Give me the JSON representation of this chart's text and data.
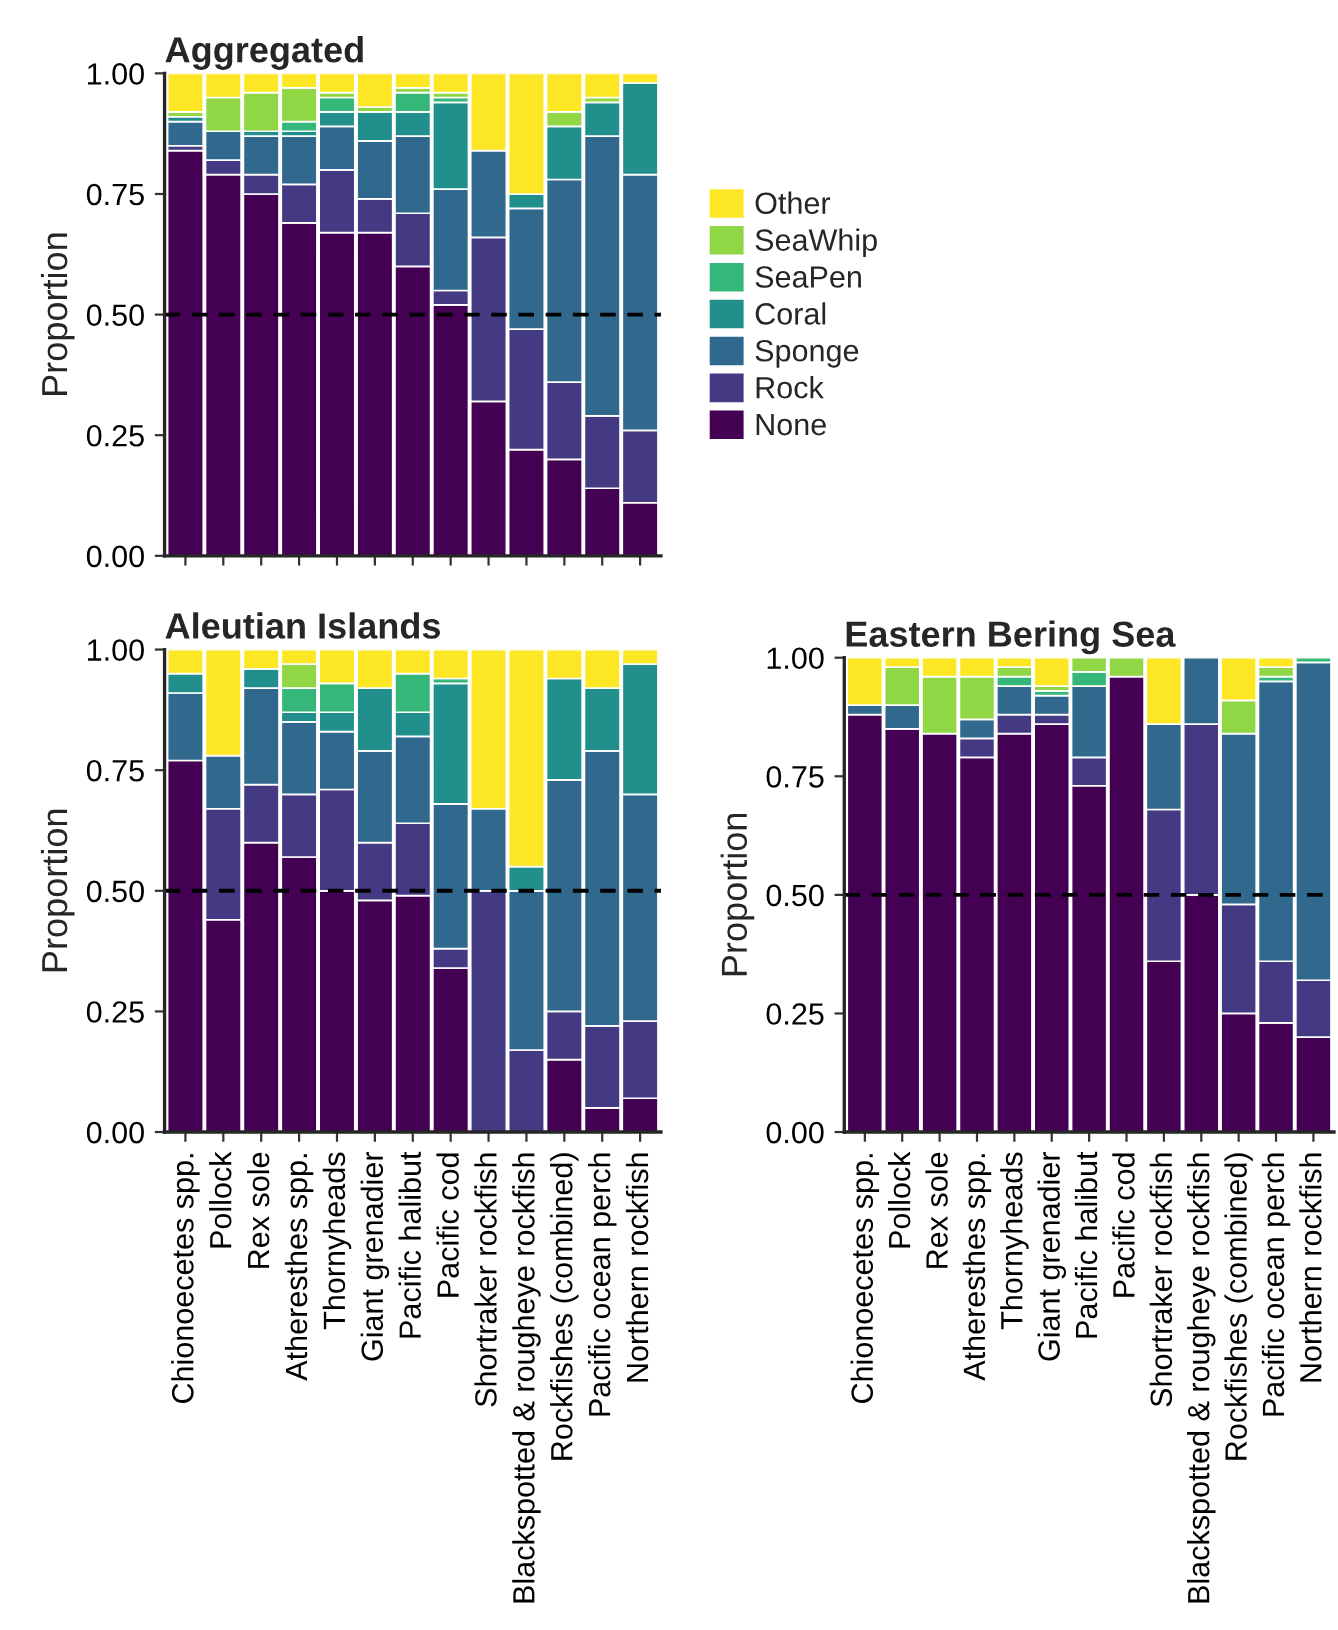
{
  "chart_data": [
    {
      "type": "bar",
      "title": "Aggregated",
      "ylabel": "Proportion",
      "stacked": true,
      "legend": "right",
      "tick_labels": "y",
      "grid": false,
      "categories": [
        null,
        null,
        null,
        null,
        null,
        null,
        null,
        null,
        null,
        null,
        null,
        null,
        null
      ],
      "ylim": [
        0,
        1
      ],
      "yticks": [
        {
          "value": 0,
          "label": "0.00"
        },
        {
          "value": 0.25,
          "label": "0.25"
        },
        {
          "value": 0.5,
          "label": "0.50"
        },
        {
          "value": 0.75,
          "label": "0.75"
        },
        {
          "value": 1,
          "label": "1.00"
        }
      ],
      "ref_lines": [
        {
          "axis": "y",
          "value": 0.5,
          "line_style": "dashed",
          "color": "#000000"
        }
      ],
      "series": [
        {
          "name": "None",
          "color": "#440154",
          "values": [
            0.84,
            0.79,
            0.75,
            0.69,
            0.67,
            0.67,
            0.6,
            0.52,
            0.32,
            0.22,
            0.2,
            0.14,
            0.11
          ]
        },
        {
          "name": "Rock",
          "color": "#443983",
          "values": [
            0.01,
            0.03,
            0.04,
            0.08,
            0.13,
            0.07,
            0.11,
            0.03,
            0.34,
            0.25,
            0.16,
            0.15,
            0.15
          ]
        },
        {
          "name": "Sponge",
          "color": "#31688e",
          "values": [
            0.05,
            0.06,
            0.08,
            0.1,
            0.09,
            0.12,
            0.16,
            0.21,
            0.18,
            0.25,
            0.42,
            0.58,
            0.53
          ]
        },
        {
          "name": "Coral",
          "color": "#21908d",
          "values": [
            0.01,
            0,
            0.01,
            0.01,
            0.03,
            0.06,
            0.05,
            0.18,
            0,
            0.03,
            0.11,
            0.07,
            0.19
          ]
        },
        {
          "name": "SeaPen",
          "color": "#35b779",
          "values": [
            0,
            0,
            0,
            0.02,
            0.03,
            0,
            0.04,
            0.01,
            0,
            0,
            0,
            0,
            0
          ]
        },
        {
          "name": "SeaWhip",
          "color": "#8fd744",
          "values": [
            0.01,
            0.07,
            0.08,
            0.07,
            0.01,
            0.01,
            0.01,
            0.01,
            0,
            0,
            0.03,
            0.01,
            0
          ]
        },
        {
          "name": "Other",
          "color": "#fde725",
          "values": [
            0.08,
            0.05,
            0.04,
            0.03,
            0.04,
            0.07,
            0.03,
            0.04,
            0.16,
            0.25,
            0.08,
            0.05,
            0.02
          ]
        }
      ]
    },
    {
      "type": "bar",
      "title": "Aleutian Islands",
      "ylabel": "Proportion",
      "stacked": true,
      "grid": false,
      "categories": [
        "Chionoecetes spp.",
        "Pollock",
        "Rex sole",
        "Atheresthes spp.",
        "Thornyheads",
        "Giant grenadier",
        "Pacific halibut",
        "Pacific cod",
        "Shortraker rockfish",
        "Blackspotted & rougheye rockfish",
        "Rockfishes (combined)",
        "Pacific ocean perch",
        "Northern rockfish"
      ],
      "ylim": [
        0,
        1
      ],
      "yticks": [
        {
          "value": 0,
          "label": "0.00"
        },
        {
          "value": 0.25,
          "label": "0.25"
        },
        {
          "value": 0.5,
          "label": "0.50"
        },
        {
          "value": 0.75,
          "label": "0.75"
        },
        {
          "value": 1,
          "label": "1.00"
        }
      ],
      "ref_lines": [
        {
          "axis": "y",
          "value": 0.5,
          "line_style": "dashed",
          "color": "#000000"
        }
      ],
      "series": [
        {
          "color": "#440154",
          "values": [
            0.77,
            0.44,
            0.6,
            0.57,
            0.5,
            0.48,
            0.49,
            0.34,
            0,
            0,
            0.15,
            0.05,
            0.07
          ]
        },
        {
          "color": "#443983",
          "values": [
            0,
            0.23,
            0.12,
            0.13,
            0.21,
            0.12,
            0.15,
            0.04,
            0.5,
            0.17,
            0.1,
            0.17,
            0.16
          ]
        },
        {
          "color": "#31688e",
          "values": [
            0.14,
            0.11,
            0.2,
            0.15,
            0.12,
            0.19,
            0.18,
            0.3,
            0.17,
            0.33,
            0.48,
            0.57,
            0.47
          ]
        },
        {
          "color": "#21908d",
          "values": [
            0.04,
            0,
            0.04,
            0.02,
            0.04,
            0.13,
            0.05,
            0.25,
            0,
            0.05,
            0.21,
            0.13,
            0.27
          ]
        },
        {
          "color": "#35b779",
          "values": [
            0,
            0,
            0,
            0.05,
            0.06,
            0,
            0.08,
            0.01,
            0,
            0,
            0,
            0,
            0
          ]
        },
        {
          "color": "#8fd744",
          "values": [
            0,
            0,
            0,
            0.05,
            0,
            0,
            0,
            0,
            0,
            0,
            0,
            0,
            0
          ]
        },
        {
          "color": "#fde725",
          "values": [
            0.05,
            0.22,
            0.04,
            0.03,
            0.07,
            0.08,
            0.05,
            0.06,
            0.33,
            0.45,
            0.06,
            0.08,
            0.03
          ]
        }
      ]
    },
    {
      "type": "bar",
      "title": "Eastern Bering Sea",
      "ylabel": "Proportion",
      "stacked": true,
      "grid": false,
      "categories": [
        "Chionoecetes spp.",
        "Pollock",
        "Rex sole",
        "Atheresthes spp.",
        "Thornyheads",
        "Giant grenadier",
        "Pacific halibut",
        "Pacific cod",
        "Shortraker rockfish",
        "Blackspotted & rougheye rockfish",
        "Rockfishes (combined)",
        "Pacific ocean perch",
        "Northern rockfish"
      ],
      "ylim": [
        0,
        1
      ],
      "yticks": [
        {
          "value": 0,
          "label": "0.00"
        },
        {
          "value": 0.25,
          "label": "0.25"
        },
        {
          "value": 0.5,
          "label": "0.50"
        },
        {
          "value": 0.75,
          "label": "0.75"
        },
        {
          "value": 1,
          "label": "1.00"
        }
      ],
      "ref_lines": [
        {
          "axis": "y",
          "value": 0.5,
          "line_style": "dashed",
          "color": "#000000"
        }
      ],
      "series": [
        {
          "color": "#440154",
          "values": [
            0.88,
            0.85,
            0.84,
            0.79,
            0.84,
            0.86,
            0.73,
            0.96,
            0.36,
            0.5,
            0.25,
            0.23,
            0.2
          ]
        },
        {
          "color": "#443983",
          "values": [
            0,
            0,
            0,
            0.04,
            0.04,
            0.02,
            0.06,
            0,
            0.32,
            0.36,
            0.23,
            0.13,
            0.12
          ]
        },
        {
          "color": "#31688e",
          "values": [
            0.02,
            0.05,
            0,
            0.04,
            0.06,
            0.04,
            0.15,
            0,
            0.18,
            0.14,
            0.36,
            0.59,
            0.67
          ]
        },
        {
          "color": "#35b779",
          "values": [
            0,
            0,
            0,
            0,
            0.02,
            0.01,
            0.03,
            0,
            0,
            0,
            0,
            0.01,
            0.01
          ]
        },
        {
          "color": "#8fd744",
          "values": [
            0,
            0.08,
            0.12,
            0.09,
            0.02,
            0.01,
            0.03,
            0.04,
            0,
            0,
            0.07,
            0.02,
            0
          ]
        },
        {
          "color": "#fde725",
          "values": [
            0.1,
            0.02,
            0.04,
            0.04,
            0.02,
            0.06,
            0,
            0,
            0.14,
            0,
            0.09,
            0.02,
            0
          ]
        }
      ]
    }
  ]
}
